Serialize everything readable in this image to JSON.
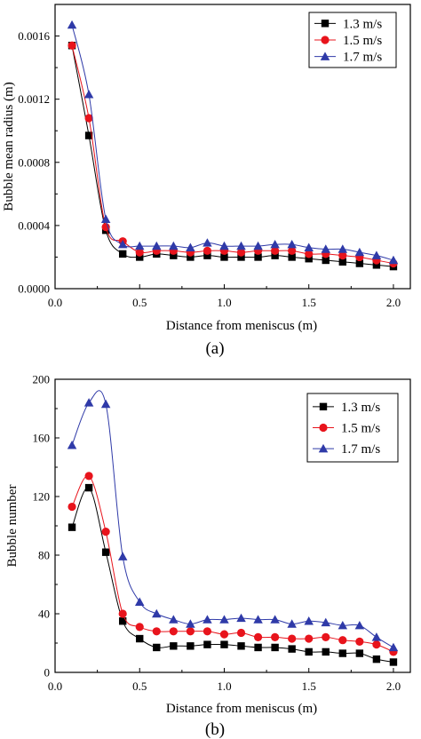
{
  "chart_data": [
    {
      "type": "line",
      "panel_label": "(a)",
      "xlabel": "Distance from meniscus (m)",
      "ylabel": "Bubble mean radius (m)",
      "xlim": [
        0.0,
        2.1
      ],
      "ylim": [
        0.0,
        0.0018
      ],
      "xticks": [
        "0.0",
        "0.5",
        "1.0",
        "1.5",
        "2.0"
      ],
      "yticks": [
        "0.0000",
        "0.0004",
        "0.0008",
        "0.0012",
        "0.0016"
      ],
      "xtick_values": [
        0.0,
        0.5,
        1.0,
        1.5,
        2.0
      ],
      "ytick_values": [
        0.0,
        0.0004,
        0.0008,
        0.0012,
        0.0016
      ],
      "grid": false,
      "legend_position": "top-right",
      "x": [
        0.1,
        0.2,
        0.3,
        0.4,
        0.5,
        0.6,
        0.7,
        0.8,
        0.9,
        1.0,
        1.1,
        1.2,
        1.3,
        1.4,
        1.5,
        1.6,
        1.7,
        1.8,
        1.9,
        2.0
      ],
      "series": [
        {
          "name": "1.3 m/s",
          "color": "#000000",
          "marker": "square",
          "values": [
            0.00154,
            0.00097,
            0.00037,
            0.00022,
            0.0002,
            0.00022,
            0.00021,
            0.0002,
            0.00021,
            0.0002,
            0.0002,
            0.0002,
            0.00021,
            0.0002,
            0.00019,
            0.00018,
            0.00017,
            0.00016,
            0.00015,
            0.00014
          ]
        },
        {
          "name": "1.5 m/s",
          "color": "#e8141c",
          "marker": "circle",
          "values": [
            0.00154,
            0.00108,
            0.00039,
            0.0003,
            0.00023,
            0.00024,
            0.00024,
            0.00023,
            0.00024,
            0.00024,
            0.00023,
            0.00024,
            0.00024,
            0.00024,
            0.00022,
            0.00022,
            0.00021,
            0.0002,
            0.00018,
            0.00016
          ]
        },
        {
          "name": "1.7 m/s",
          "color": "#2f3aa8",
          "marker": "triangle",
          "values": [
            0.00167,
            0.00123,
            0.00044,
            0.00028,
            0.00027,
            0.00027,
            0.00027,
            0.00026,
            0.00029,
            0.00027,
            0.00027,
            0.00027,
            0.00028,
            0.00028,
            0.00026,
            0.00025,
            0.00025,
            0.00023,
            0.00021,
            0.00018
          ]
        }
      ]
    },
    {
      "type": "line",
      "panel_label": "(b)",
      "xlabel": "Distance from meniscus (m)",
      "ylabel": "Bubble number",
      "xlim": [
        0.0,
        2.1
      ],
      "ylim": [
        0,
        200
      ],
      "xticks": [
        "0.0",
        "0.5",
        "1.0",
        "1.5",
        "2.0"
      ],
      "yticks": [
        "0",
        "40",
        "80",
        "120",
        "160",
        "200"
      ],
      "xtick_values": [
        0.0,
        0.5,
        1.0,
        1.5,
        2.0
      ],
      "ytick_values": [
        0,
        40,
        80,
        120,
        160,
        200
      ],
      "grid": false,
      "legend_position": "top-right",
      "x": [
        0.1,
        0.2,
        0.3,
        0.4,
        0.5,
        0.6,
        0.7,
        0.8,
        0.9,
        1.0,
        1.1,
        1.2,
        1.3,
        1.4,
        1.5,
        1.6,
        1.7,
        1.8,
        1.9,
        2.0
      ],
      "series": [
        {
          "name": "1.3 m/s",
          "color": "#000000",
          "marker": "square",
          "values": [
            99,
            126,
            82,
            35,
            23,
            17,
            18,
            18,
            19,
            19,
            18,
            17,
            17,
            16,
            14,
            14,
            13,
            13,
            9,
            7
          ]
        },
        {
          "name": "1.5 m/s",
          "color": "#e8141c",
          "marker": "circle",
          "values": [
            113,
            134,
            96,
            40,
            31,
            28,
            28,
            28,
            28,
            26,
            27,
            24,
            24,
            23,
            23,
            24,
            22,
            21,
            19,
            14
          ]
        },
        {
          "name": "1.7 m/s",
          "color": "#2f3aa8",
          "marker": "triangle",
          "values": [
            155,
            184,
            183,
            79,
            48,
            40,
            36,
            33,
            36,
            36,
            37,
            36,
            36,
            33,
            35,
            34,
            32,
            32,
            24,
            17
          ]
        }
      ]
    }
  ]
}
